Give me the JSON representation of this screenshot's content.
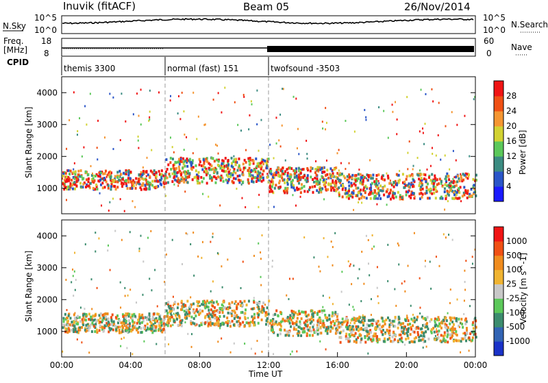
{
  "header": {
    "station": "Inuvik (fitACF)",
    "beam": "Beam 05",
    "date": "26/Nov/2014"
  },
  "strips": {
    "nsky_label": "N.Sky",
    "nsky_ticks": [
      "10^5",
      "10^0"
    ],
    "nsearch_label": "N.Search",
    "nsearch_ticks": [
      "10^5",
      "10^0"
    ],
    "freq_label_1": "Freq.",
    "freq_label_2": "[MHz]",
    "freq_ticks": [
      "18",
      "8"
    ],
    "nave_label": "Nave",
    "nave_ticks": [
      "60",
      "0"
    ],
    "cpid_label": "CPID",
    "cpid_segments": [
      {
        "label": "themis 3300",
        "start": 0,
        "end": 6
      },
      {
        "label": "normal (fast) 151",
        "start": 6,
        "end": 12
      },
      {
        "label": "twofsound -3503",
        "start": 12,
        "end": 24
      }
    ]
  },
  "chart_data": [
    {
      "type": "heatmap",
      "panel": "power",
      "ylabel": "Slant Range [km]",
      "yticks": [
        "1000",
        "2000",
        "3000",
        "4000"
      ],
      "ylim": [
        200,
        4500
      ],
      "colorbar_label": "Power [dB]",
      "colorbar_ticks": [
        "4",
        "8",
        "12",
        "16",
        "20",
        "24",
        "28"
      ],
      "colorbar_colors": [
        "#1a1aff",
        "#2a55c8",
        "#3c8c82",
        "#5cc85a",
        "#d2d232",
        "#f59632",
        "#f05014",
        "#f01414"
      ]
    },
    {
      "type": "heatmap",
      "panel": "velocity",
      "ylabel": "Slant Range [km]",
      "yticks": [
        "1000",
        "2000",
        "3000",
        "4000"
      ],
      "ylim": [
        200,
        4500
      ],
      "colorbar_label": "Velocity [m s^-1]",
      "colorbar_ticks": [
        "1000",
        "500",
        "100",
        "25",
        "-25",
        "-100",
        "-500",
        "-1000"
      ],
      "colorbar_colors": [
        "#1a32c8",
        "#3264b4",
        "#3c8c6e",
        "#5cc85a",
        "#c8c8c8",
        "#f0b432",
        "#f08c1e",
        "#f05014",
        "#f01414"
      ],
      "xlabel": "Time UT",
      "xticks": [
        "00:00",
        "04:00",
        "08:00",
        "12:00",
        "16:00",
        "20:00",
        "00:00"
      ],
      "xlim": [
        0,
        24
      ]
    }
  ]
}
